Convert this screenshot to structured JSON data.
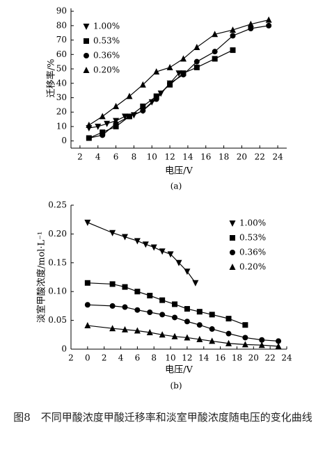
{
  "chart_data": [
    {
      "type": "line",
      "xlabel": "电压/V",
      "ylabel": "迁移率/%",
      "subtitle": "(a)",
      "xlim": [
        1,
        25
      ],
      "xticks": [
        2,
        4,
        6,
        8,
        10,
        12,
        14,
        16,
        18,
        20,
        22,
        24
      ],
      "ylim": [
        -5,
        92
      ],
      "yticks": [
        0,
        10,
        20,
        30,
        40,
        50,
        60,
        70,
        80,
        90
      ],
      "legend": "upper left",
      "series": [
        {
          "name": "1.00%",
          "color": "#000000",
          "marker": "triangle-down",
          "x": [
            3,
            4,
            5,
            6,
            7,
            8,
            9,
            10,
            11,
            12,
            13
          ],
          "values": [
            9,
            10,
            12,
            14,
            17,
            18,
            21,
            27,
            33,
            40,
            47
          ]
        },
        {
          "name": "0.53%",
          "color": "#000000",
          "marker": "square",
          "x": [
            3,
            4.5,
            6,
            7.5,
            9,
            10.5,
            12,
            13.5,
            15,
            17,
            19
          ],
          "values": [
            2,
            6,
            10,
            17,
            24,
            31,
            39,
            47,
            51,
            57,
            63
          ]
        },
        {
          "name": "0.36%",
          "color": "#000000",
          "marker": "circle",
          "x": [
            3,
            4.5,
            6,
            7.5,
            9,
            10.5,
            12,
            13.5,
            15,
            17,
            19,
            21,
            23
          ],
          "values": [
            2,
            4,
            12,
            17,
            21,
            29,
            40,
            46,
            55,
            62,
            73,
            78,
            80
          ]
        },
        {
          "name": "0.20%",
          "color": "#000000",
          "marker": "triangle",
          "x": [
            3,
            4.5,
            6,
            7.5,
            9,
            10.5,
            12,
            13.5,
            15,
            17,
            19,
            21,
            23
          ],
          "values": [
            11,
            17,
            24,
            31,
            39,
            48,
            51,
            57,
            65,
            74,
            77,
            81,
            84
          ]
        }
      ]
    },
    {
      "type": "line",
      "xlabel": "电压/V",
      "ylabel": "淡室甲酸浓度/mol·L⁻¹",
      "subtitle": "(b)",
      "xlim": [
        -2,
        24
      ],
      "xticks": [
        {
          "value": -2,
          "label": "2"
        },
        0,
        2,
        4,
        6,
        8,
        10,
        12,
        14,
        16,
        18,
        20,
        22,
        24
      ],
      "ylim": [
        0,
        0.25
      ],
      "yticks": [
        0,
        0.05,
        {
          "value": 0.1,
          "label": "0.10"
        },
        0.15,
        {
          "value": 0.2,
          "label": "0.20"
        },
        0.25
      ],
      "legend": "upper right",
      "series": [
        {
          "name": "1.00%",
          "color": "#000000",
          "marker": "triangle-down",
          "x": [
            0,
            3,
            4.5,
            6,
            7,
            8,
            9,
            10,
            11,
            12,
            13
          ],
          "values": [
            0.22,
            0.202,
            0.195,
            0.188,
            0.182,
            0.177,
            0.17,
            0.165,
            0.15,
            0.135,
            0.115
          ]
        },
        {
          "name": "0.53%",
          "color": "#000000",
          "marker": "square",
          "x": [
            0,
            3,
            4.5,
            6,
            7.5,
            9,
            10.5,
            12,
            13.5,
            15,
            17,
            19
          ],
          "values": [
            0.115,
            0.113,
            0.108,
            0.1,
            0.093,
            0.085,
            0.078,
            0.07,
            0.065,
            0.06,
            0.053,
            0.042
          ]
        },
        {
          "name": "0.36%",
          "color": "#000000",
          "marker": "circle",
          "x": [
            0,
            3,
            4.5,
            6,
            7.5,
            9,
            10.5,
            12,
            13.5,
            15,
            17,
            19,
            21,
            23
          ],
          "values": [
            0.077,
            0.075,
            0.073,
            0.068,
            0.064,
            0.06,
            0.055,
            0.048,
            0.042,
            0.035,
            0.027,
            0.02,
            0.016,
            0.014
          ]
        },
        {
          "name": "0.20%",
          "color": "#000000",
          "marker": "triangle",
          "x": [
            0,
            3,
            4.5,
            6,
            7.5,
            9,
            10.5,
            12,
            13.5,
            15,
            17,
            19,
            21,
            23
          ],
          "values": [
            0.041,
            0.036,
            0.034,
            0.032,
            0.029,
            0.025,
            0.022,
            0.02,
            0.017,
            0.014,
            0.01,
            0.008,
            0.007,
            0.005
          ]
        }
      ]
    }
  ],
  "caption": "图8　不同甲酸浓度甲酸迁移率和淡室甲酸浓度随电压的变化曲线"
}
